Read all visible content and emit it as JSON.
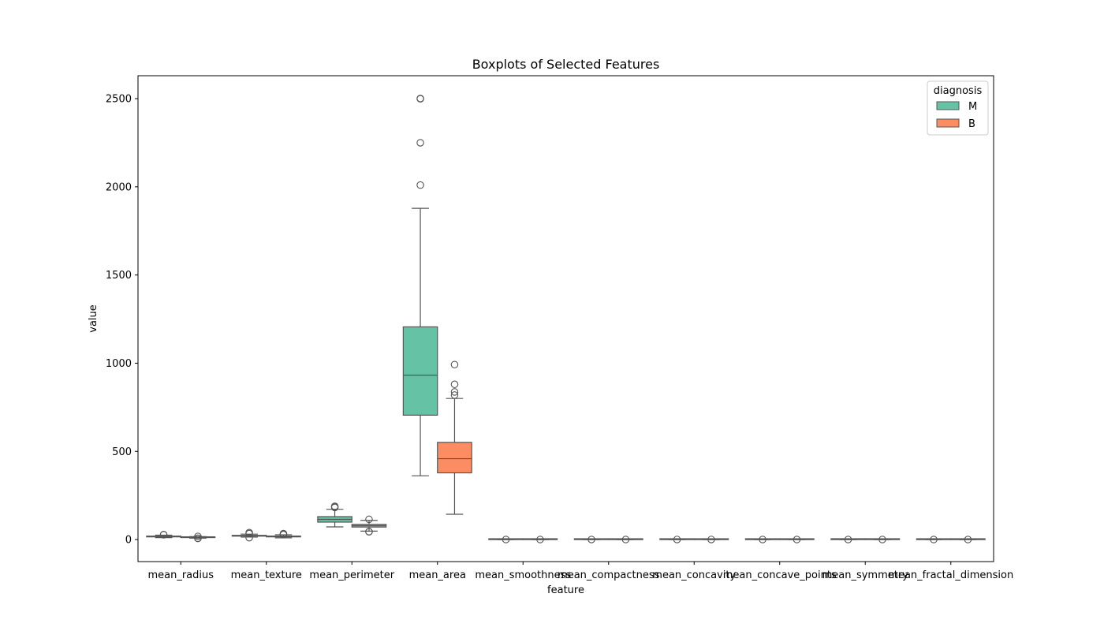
{
  "chart_data": {
    "type": "boxplot",
    "title": "Boxplots of Selected Features",
    "xlabel": "feature",
    "ylabel": "value",
    "ylim": [
      -125,
      2630
    ],
    "yticks": [
      0,
      500,
      1000,
      1500,
      2000,
      2500
    ],
    "grid": false,
    "legend": {
      "title": "diagnosis",
      "placement": "top-right"
    },
    "categories": [
      "mean_radius",
      "mean_texture",
      "mean_perimeter",
      "mean_area",
      "mean_smoothness",
      "mean_compactness",
      "mean_concavity",
      "mean_concave_points",
      "mean_symmetry",
      "mean_fractal_dimension"
    ],
    "series": [
      {
        "name": "M",
        "color": "#66c2a5",
        "boxes": [
          {
            "whislo": 11,
            "q1": 15.1,
            "med": 17.3,
            "q3": 19.6,
            "whishi": 25.2,
            "fliers": [
              27.2,
              28.1
            ]
          },
          {
            "whislo": 14,
            "q1": 19.3,
            "med": 21.5,
            "q3": 23.8,
            "whishi": 30.7,
            "fliers": [
              10.4,
              33.6,
              39.3
            ]
          },
          {
            "whislo": 71.9,
            "q1": 98.7,
            "med": 114.2,
            "q3": 130,
            "whishi": 171.5,
            "fliers": [
              182,
              186,
              188.5
            ]
          },
          {
            "whislo": 361.6,
            "q1": 705.3,
            "med": 932,
            "q3": 1206,
            "whishi": 1878,
            "fliers": [
              2010,
              2250,
              2499,
              2501
            ]
          },
          {
            "whislo": 0.074,
            "q1": 0.092,
            "med": 0.102,
            "q3": 0.11,
            "whishi": 0.145,
            "fliers": [
              0.163
            ]
          },
          {
            "whislo": 0.046,
            "q1": 0.11,
            "med": 0.132,
            "q3": 0.172,
            "whishi": 0.28,
            "fliers": [
              0.345
            ]
          },
          {
            "whislo": 0.024,
            "q1": 0.11,
            "med": 0.151,
            "q3": 0.204,
            "whishi": 0.34,
            "fliers": [
              0.427
            ]
          },
          {
            "whislo": 0.02,
            "q1": 0.065,
            "med": 0.086,
            "q3": 0.103,
            "whishi": 0.16,
            "fliers": [
              0.201
            ]
          },
          {
            "whislo": 0.13,
            "q1": 0.174,
            "med": 0.19,
            "q3": 0.21,
            "whishi": 0.26,
            "fliers": [
              0.304
            ]
          },
          {
            "whislo": 0.05,
            "q1": 0.056,
            "med": 0.061,
            "q3": 0.066,
            "whishi": 0.08,
            "fliers": [
              0.097
            ]
          }
        ]
      },
      {
        "name": "B",
        "color": "#fc8d62",
        "boxes": [
          {
            "whislo": 8.2,
            "q1": 11.1,
            "med": 12.2,
            "q3": 13.4,
            "whishi": 16.8,
            "fliers": [
              7,
              6.9,
              17.8
            ]
          },
          {
            "whislo": 9.7,
            "q1": 15.1,
            "med": 17.4,
            "q3": 19.8,
            "whishi": 26.9,
            "fliers": [
              28,
              29.3,
              33.8,
              32
            ]
          },
          {
            "whislo": 47.9,
            "q1": 70.9,
            "med": 78.2,
            "q3": 86.1,
            "whishi": 108.6,
            "fliers": [
              43.8,
              45,
              114.6
            ]
          },
          {
            "whislo": 143.5,
            "q1": 378.2,
            "med": 458.4,
            "q3": 551.1,
            "whishi": 800,
            "fliers": [
              819,
              837,
              880,
              992
            ]
          },
          {
            "whislo": 0.06,
            "q1": 0.081,
            "med": 0.09,
            "q3": 0.1,
            "whishi": 0.126,
            "fliers": [
              0.163
            ]
          },
          {
            "whislo": 0.019,
            "q1": 0.056,
            "med": 0.075,
            "q3": 0.098,
            "whishi": 0.16,
            "fliers": [
              0.224
            ]
          },
          {
            "whislo": 0,
            "q1": 0.02,
            "med": 0.037,
            "q3": 0.059,
            "whishi": 0.12,
            "fliers": [
              0.41
            ]
          },
          {
            "whislo": 0,
            "q1": 0.015,
            "med": 0.023,
            "q3": 0.032,
            "whishi": 0.058,
            "fliers": [
              0.085
            ]
          },
          {
            "whislo": 0.12,
            "q1": 0.158,
            "med": 0.172,
            "q3": 0.189,
            "whishi": 0.23,
            "fliers": [
              0.274
            ]
          },
          {
            "whislo": 0.05,
            "q1": 0.059,
            "med": 0.062,
            "q3": 0.066,
            "whishi": 0.075,
            "fliers": [
              0.096
            ]
          }
        ]
      }
    ]
  }
}
